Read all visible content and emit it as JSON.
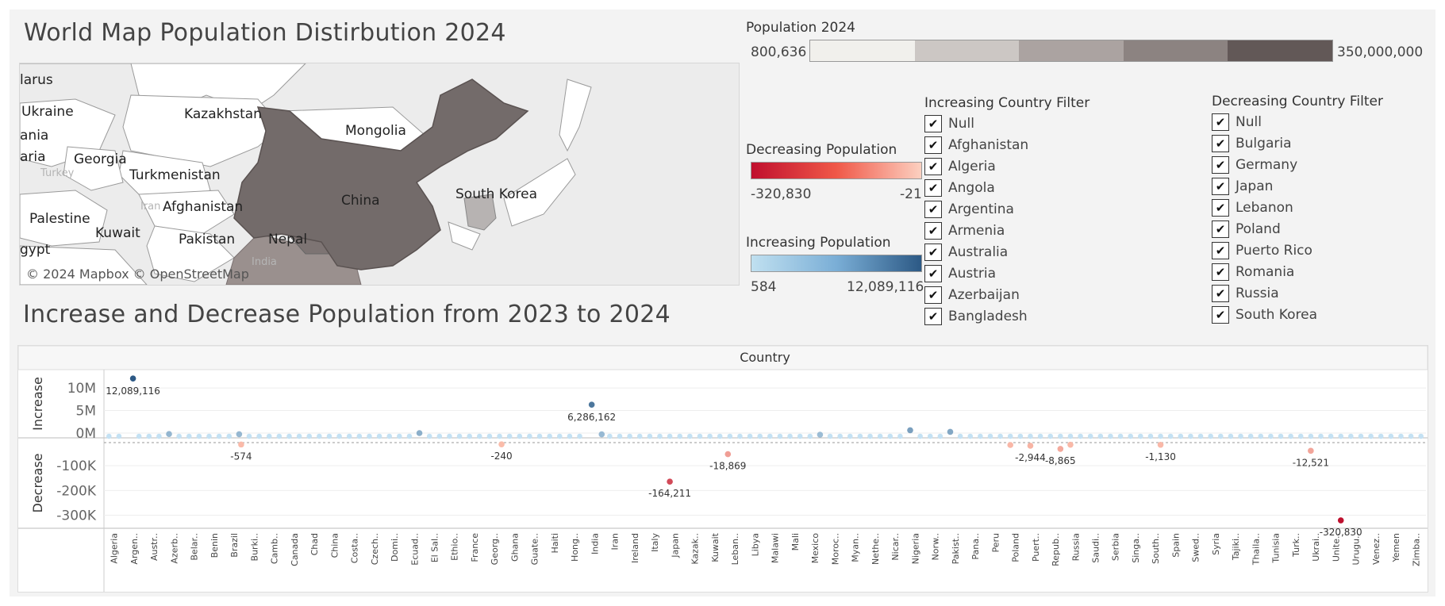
{
  "map_title": "World Map Population Distirbution 2024",
  "chart_title": "Increase and Decrease Population from 2023 to 2024",
  "map": {
    "credit": "© 2024 Mapbox © OpenStreetMap",
    "labels": {
      "belarus": "larus",
      "ukraine": "Ukraine",
      "kazakhstan": "Kazakhstan",
      "mongolia": "Mongolia",
      "romania": "ania",
      "georgia": "Georgia",
      "bulgaria": "aria",
      "turkmenistan": "Turkmenistan",
      "turkey": "Turkey",
      "china": "China",
      "south_korea": "South Korea",
      "afghanistan": "Afghanistan",
      "iran": "Iran",
      "palestine": "Palestine",
      "kuwait": "Kuwait",
      "pakistan": "Pakistan",
      "nepal": "Nepal",
      "egypt": "gypt",
      "india": "India"
    }
  },
  "legend_population": {
    "title": "Population 2024",
    "min": "800,636",
    "max": "350,000,000",
    "colors": [
      "#f1f0ec",
      "#ccc7c4",
      "#aba3a1",
      "#8c8381",
      "#625857"
    ]
  },
  "legend_decreasing": {
    "title": "Decreasing Population",
    "min": "-320,830",
    "max": "-21",
    "colors": [
      "#c0102e",
      "#f05848",
      "#fcd0c0"
    ]
  },
  "legend_increasing": {
    "title": "Increasing Population",
    "min": "584",
    "max": "12,089,116",
    "colors": [
      "#c0e0f0",
      "#7aaed6",
      "#2c5985"
    ]
  },
  "filter_increasing": {
    "title": "Increasing Country Filter",
    "items": [
      "Null",
      "Afghanistan",
      "Algeria",
      "Angola",
      "Argentina",
      "Armenia",
      "Australia",
      "Austria",
      "Azerbaijan",
      "Bangladesh"
    ]
  },
  "filter_decreasing": {
    "title": "Decreasing Country Filter",
    "items": [
      "Null",
      "Bulgaria",
      "Germany",
      "Japan",
      "Lebanon",
      "Poland",
      "Puerto Rico",
      "Romania",
      "Russia",
      "South Korea"
    ]
  },
  "chart_data": {
    "type": "scatter",
    "header": "Country",
    "rows": [
      {
        "name": "Increase",
        "ticks": [
          "10M",
          "5M",
          "0M"
        ],
        "tick_values": [
          10000000,
          5000000,
          0
        ],
        "ylim": [
          0,
          13000000
        ]
      },
      {
        "name": "Decrease",
        "ticks": [
          "-100K",
          "-200K",
          "-300K"
        ],
        "tick_values": [
          -100000,
          -200000,
          -300000
        ],
        "ylim": [
          -340000,
          0
        ]
      }
    ],
    "categories": [
      "Algeria",
      "Argen..",
      "Austr..",
      "Azerb..",
      "Belar..",
      "Benin",
      "Brazil",
      "Burki..",
      "Camb..",
      "Canada",
      "Chad",
      "China",
      "Costa..",
      "Czech..",
      "Domi..",
      "Ecuad..",
      "El Sal..",
      "Ethio..",
      "France",
      "Georg..",
      "Ghana",
      "Guate..",
      "Haiti",
      "Hong..",
      "India",
      "Iran",
      "Ireland",
      "Italy",
      "Japan",
      "Kazak..",
      "Kuwait",
      "Leban..",
      "Libya",
      "Malawi",
      "Mali",
      "Mexico",
      "Moroc..",
      "Myan..",
      "Nethe..",
      "Nicar..",
      "Nigeria",
      "Norw..",
      "Pakist..",
      "Pana..",
      "Peru",
      "Poland",
      "Puert..",
      "Repub..",
      "Russia",
      "Saudi..",
      "Serbia",
      "Singa..",
      "South..",
      "Spain",
      "Swed..",
      "Syria",
      "Tajiki..",
      "Thaila..",
      "Tunisia",
      "Turk..",
      "Ukrai..",
      "Unite..",
      "Urugu..",
      "Venez..",
      "Yemen",
      "Zimba.."
    ],
    "increase_points": [
      {
        "x": 1.2,
        "value": 12089116,
        "label": "12,089,116"
      },
      {
        "x": 24.1,
        "value": 6286162,
        "label": "6,286,162"
      },
      {
        "x": 40,
        "value": 1900000
      },
      {
        "x": 42,
        "value": 1400000
      },
      {
        "x": 15.5,
        "value": 1000000
      },
      {
        "x": 3,
        "value": 700000
      },
      {
        "x": 6.5,
        "value": 650000
      },
      {
        "x": 24.6,
        "value": 600000
      },
      {
        "x": 35.5,
        "value": 500000
      }
    ],
    "decrease_points": [
      {
        "x": 6.6,
        "value": -574,
        "label": "-574"
      },
      {
        "x": 19.6,
        "value": -240,
        "label": "-240"
      },
      {
        "x": 28,
        "value": -164211,
        "label": "-164,211"
      },
      {
        "x": 30.9,
        "value": -18869,
        "label": "-18,869"
      },
      {
        "x": 45,
        "value": -1500
      },
      {
        "x": 46,
        "value": -2944,
        "label": "-2,944"
      },
      {
        "x": 47.5,
        "value": -8865,
        "label": "-8,865"
      },
      {
        "x": 48,
        "value": -1000
      },
      {
        "x": 52.5,
        "value": -1130,
        "label": "-1,130"
      },
      {
        "x": 60,
        "value": -12521,
        "label": "-12,521"
      },
      {
        "x": 61.5,
        "value": -320830,
        "label": "-320,830"
      }
    ],
    "reference_line": "dashed at 0"
  }
}
